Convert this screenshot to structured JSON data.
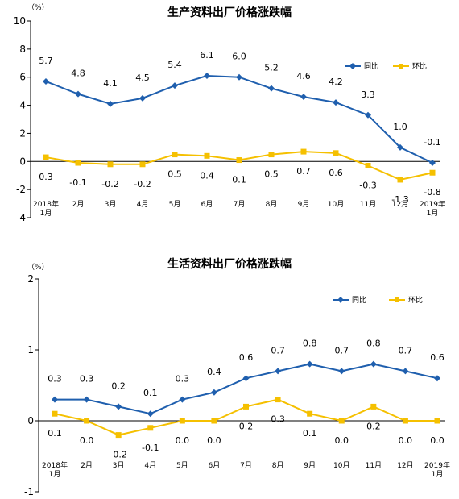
{
  "colors": {
    "yoy": "#1F5FAE",
    "mom": "#F5C000",
    "axis": "#000000"
  },
  "chart_data": [
    {
      "type": "line",
      "title": "生产资料出厂价格涨跌幅",
      "unit": "（%）",
      "categories": [
        [
          "2018年",
          "1月"
        ],
        [
          "2月"
        ],
        [
          "3月"
        ],
        [
          "4月"
        ],
        [
          "5月"
        ],
        [
          "6月"
        ],
        [
          "7月"
        ],
        [
          "8月"
        ],
        [
          "9月"
        ],
        [
          "10月"
        ],
        [
          "11月"
        ],
        [
          "12月"
        ],
        [
          "2019年",
          "1月"
        ]
      ],
      "ylim": [
        -4,
        10
      ],
      "yticks": [
        -4,
        -2,
        0,
        2,
        4,
        6,
        8,
        10
      ],
      "yticklabels": [
        "-4",
        "-2",
        "0",
        "2",
        "4",
        "6",
        "8",
        "10"
      ],
      "grid": false,
      "legend_position": "top-right",
      "series": [
        {
          "name": "同比",
          "values": [
            5.7,
            4.8,
            4.1,
            4.5,
            5.4,
            6.1,
            6.0,
            5.2,
            4.6,
            4.2,
            3.3,
            1.0,
            -0.1
          ],
          "labels": [
            "5.7",
            "4.8",
            "4.1",
            "4.5",
            "5.4",
            "6.1",
            "6.0",
            "5.2",
            "4.6",
            "4.2",
            "3.3",
            "1.0",
            "-0.1"
          ]
        },
        {
          "name": "环比",
          "values": [
            0.3,
            -0.1,
            -0.2,
            -0.2,
            0.5,
            0.4,
            0.1,
            0.5,
            0.7,
            0.6,
            -0.3,
            -1.3,
            -0.8
          ],
          "labels": [
            "0.3",
            "-0.1",
            "-0.2",
            "-0.2",
            "0.5",
            "0.4",
            "0.1",
            "0.5",
            "0.7",
            "0.6",
            "-0.3",
            "-1.3",
            "-0.8"
          ]
        }
      ]
    },
    {
      "type": "line",
      "title": "生活资料出厂价格涨跌幅",
      "unit": "（%）",
      "categories": [
        [
          "2018年",
          "1月"
        ],
        [
          "2月"
        ],
        [
          "3月"
        ],
        [
          "4月"
        ],
        [
          "5月"
        ],
        [
          "6月"
        ],
        [
          "7月"
        ],
        [
          "8月"
        ],
        [
          "9月"
        ],
        [
          "10月"
        ],
        [
          "11月"
        ],
        [
          "12月"
        ],
        [
          "2019年",
          "1月"
        ]
      ],
      "ylim": [
        -1,
        2
      ],
      "yticks": [
        -1,
        0,
        1,
        2
      ],
      "yticklabels": [
        "-1",
        "0",
        "1",
        "2"
      ],
      "grid": false,
      "legend_position": "top-right",
      "series": [
        {
          "name": "同比",
          "values": [
            0.3,
            0.3,
            0.2,
            0.1,
            0.3,
            0.4,
            0.6,
            0.7,
            0.8,
            0.7,
            0.8,
            0.7,
            0.6
          ],
          "labels": [
            "0.3",
            "0.3",
            "0.2",
            "0.1",
            "0.3",
            "0.4",
            "0.6",
            "0.7",
            "0.8",
            "0.7",
            "0.8",
            "0.7",
            "0.6"
          ]
        },
        {
          "name": "环比",
          "values": [
            0.1,
            0.0,
            -0.2,
            -0.1,
            0.0,
            0.0,
            0.2,
            0.3,
            0.1,
            0.0,
            0.2,
            0.0,
            0.0
          ],
          "labels": [
            "0.1",
            "0.0",
            "-0.2",
            "-0.1",
            "0.0",
            "0.0",
            "0.2",
            "0.3",
            "0.1",
            "0.0",
            "0.2",
            "0.0",
            "0.0"
          ]
        }
      ]
    }
  ]
}
